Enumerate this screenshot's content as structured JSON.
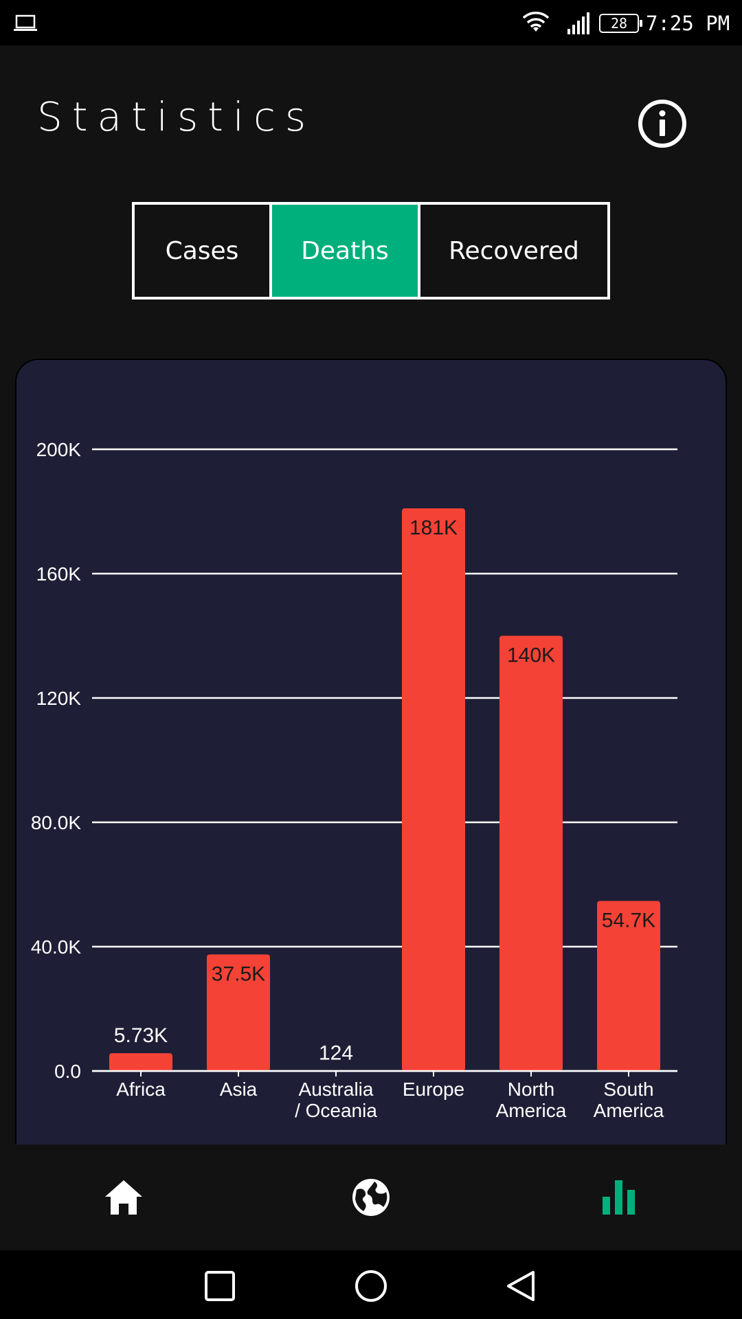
{
  "status_bar": {
    "battery": "28",
    "time": "7:25 PM",
    "icons": [
      "laptop-icon",
      "wifi-icon",
      "signal-icon",
      "battery-icon"
    ]
  },
  "header": {
    "title": "Statistics",
    "info_icon": "info-icon"
  },
  "tabs": [
    {
      "label": "Cases",
      "active": false
    },
    {
      "label": "Deaths",
      "active": true
    },
    {
      "label": "Recovered",
      "active": false
    }
  ],
  "colors": {
    "accent": "#00b07c",
    "bar": "#f44336",
    "card_background": "#1e1f36",
    "page_background": "#121212"
  },
  "chart_data": {
    "type": "bar",
    "categories": [
      "Africa",
      "Asia",
      "Australia / Oceania",
      "Europe",
      "North America",
      "South America"
    ],
    "category_label_lines": [
      [
        "Africa"
      ],
      [
        "Asia"
      ],
      [
        "Australia",
        "/ Oceania"
      ],
      [
        "Europe"
      ],
      [
        "North",
        "America"
      ],
      [
        "South",
        "America"
      ]
    ],
    "values": [
      5730,
      37500,
      124,
      181000,
      140000,
      54700
    ],
    "data_labels": [
      "5.73K",
      "37.5K",
      "124",
      "181K",
      "140K",
      "54.7K"
    ],
    "y_ticks": [
      0,
      40000,
      80000,
      120000,
      160000,
      200000
    ],
    "y_tick_labels": [
      "0.0",
      "40.0K",
      "80.0K",
      "120K",
      "160K",
      "200K"
    ],
    "ylim": [
      0,
      200000
    ],
    "grid": true,
    "title": "",
    "xlabel": "",
    "ylabel": ""
  },
  "bottom_nav": [
    {
      "icon": "home-icon",
      "active": false
    },
    {
      "icon": "globe-icon",
      "active": false
    },
    {
      "icon": "bar-chart-icon",
      "active": true
    }
  ],
  "system_nav": [
    "recents-icon",
    "home-circle-icon",
    "back-icon"
  ]
}
